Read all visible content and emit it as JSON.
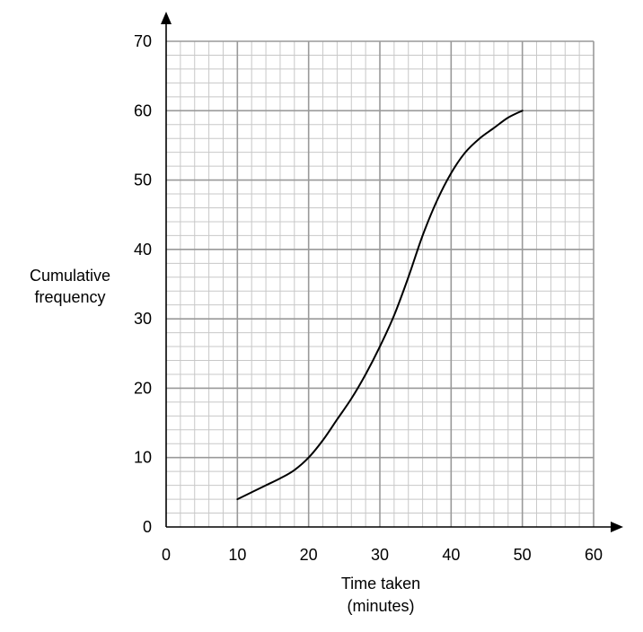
{
  "chart_data": {
    "type": "line",
    "title": "",
    "xlabel": [
      "Time taken",
      "(minutes)"
    ],
    "ylabel": [
      "Cumulative",
      "frequency"
    ],
    "xlim": [
      0,
      60
    ],
    "ylim": [
      0,
      70
    ],
    "x_ticks": [
      0,
      10,
      20,
      30,
      40,
      50,
      60
    ],
    "y_ticks": [
      0,
      10,
      20,
      30,
      40,
      50,
      60,
      70
    ],
    "x_minor_step": 2,
    "y_minor_step": 2,
    "grid": true,
    "legend": "none",
    "colors": {
      "major_grid": "#999999",
      "minor_grid": "#c8c8c8",
      "curve": "#000000",
      "axis": "#000000"
    },
    "series": [
      {
        "points": [
          [
            10,
            4
          ],
          [
            12,
            5
          ],
          [
            14,
            6
          ],
          [
            16,
            7
          ],
          [
            18,
            8.2
          ],
          [
            20,
            10
          ],
          [
            22,
            12.5
          ],
          [
            24,
            15.5
          ],
          [
            26,
            18.5
          ],
          [
            28,
            22
          ],
          [
            30,
            26
          ],
          [
            32,
            30.5
          ],
          [
            34,
            36
          ],
          [
            36,
            42
          ],
          [
            38,
            47
          ],
          [
            40,
            51
          ],
          [
            42,
            54
          ],
          [
            44,
            56
          ],
          [
            46,
            57.5
          ],
          [
            48,
            59
          ],
          [
            50,
            60
          ]
        ]
      }
    ]
  }
}
